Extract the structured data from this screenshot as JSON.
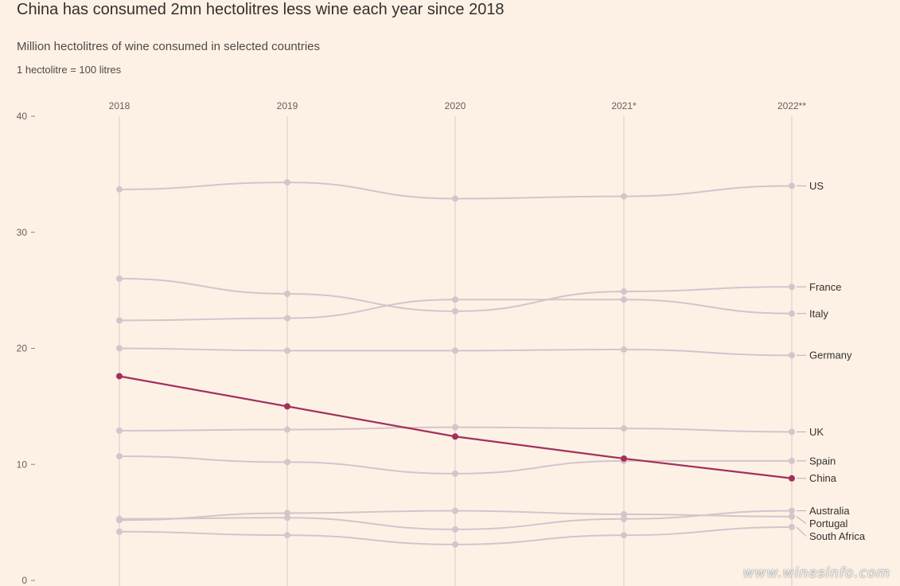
{
  "title": "China has consumed 2mn hectolitres less wine each year since 2018",
  "subtitle": "Million hectolitres of wine consumed in selected countries",
  "note": "1 hectolitre = 100 litres",
  "watermark": "www.winesinfo.com",
  "colors": {
    "background": "#fdf1e5",
    "highlight": "#a3305b",
    "muted": "#d6c3cb",
    "grid": "#d9ccc8"
  },
  "chart_data": {
    "type": "line",
    "x": [
      "2018",
      "2019",
      "2020",
      "2021*",
      "2022**"
    ],
    "ylim": [
      0,
      40
    ],
    "yticks": [
      0,
      10,
      20,
      30,
      40
    ],
    "grid": true,
    "series": [
      {
        "name": "US",
        "values": [
          33.7,
          34.3,
          32.9,
          33.1,
          34.0
        ],
        "highlight": false
      },
      {
        "name": "France",
        "values": [
          26.0,
          24.7,
          23.2,
          24.9,
          25.3
        ],
        "highlight": false
      },
      {
        "name": "Italy",
        "values": [
          22.4,
          22.6,
          24.2,
          24.2,
          23.0
        ],
        "highlight": false
      },
      {
        "name": "Germany",
        "values": [
          20.0,
          19.8,
          19.8,
          19.9,
          19.4
        ],
        "highlight": false
      },
      {
        "name": "UK",
        "values": [
          12.9,
          13.0,
          13.2,
          13.1,
          12.8
        ],
        "highlight": false
      },
      {
        "name": "Spain",
        "values": [
          10.7,
          10.2,
          9.2,
          10.3,
          10.3
        ],
        "highlight": false
      },
      {
        "name": "China",
        "values": [
          17.6,
          15.0,
          12.4,
          10.5,
          8.8
        ],
        "highlight": true
      },
      {
        "name": "Portugal",
        "values": [
          5.2,
          5.8,
          6.0,
          5.7,
          5.5
        ],
        "highlight": false
      },
      {
        "name": "Australia",
        "values": [
          5.3,
          5.4,
          4.4,
          5.3,
          6.0
        ],
        "highlight": false
      },
      {
        "name": "South Africa",
        "values": [
          4.2,
          3.9,
          3.1,
          3.9,
          4.6
        ],
        "highlight": false
      }
    ]
  }
}
